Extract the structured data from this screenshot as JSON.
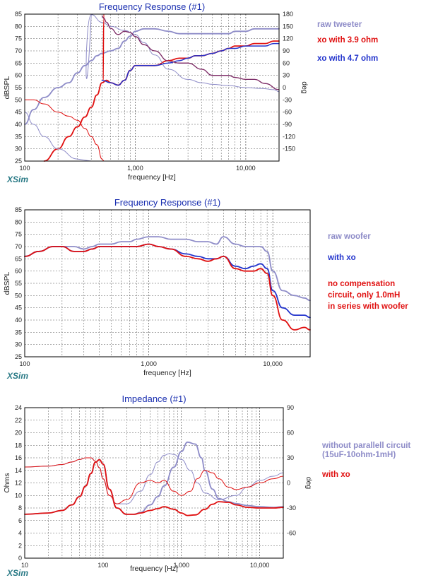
{
  "colors": {
    "raw": "#8e8cc8",
    "xo_red": "#e01010",
    "xo_blue": "#2233cc",
    "phase_dark": "#7a2d6a",
    "brand": "#2a7a86",
    "title": "#1a2fb0"
  },
  "chart_data": [
    {
      "type": "line",
      "title": "Frequency Response (#1)",
      "xlabel": "frequency [Hz]",
      "ylabel": "dBSPL",
      "ylabel_right": "deg",
      "brand": "XSim",
      "xscale": "log",
      "xlim": [
        100,
        20000
      ],
      "ylim": [
        25,
        85
      ],
      "ylim_right": [
        -180,
        180
      ],
      "yticks": [
        "85",
        "80",
        "75",
        "70",
        "65",
        "60",
        "55",
        "50",
        "45",
        "40",
        "35",
        "30",
        "25"
      ],
      "yticks_right": [
        "180",
        "150",
        "120",
        "90",
        "60",
        "30",
        "0",
        "-30",
        "-60",
        "-90",
        "-120",
        "-150"
      ],
      "xticks": [
        "100",
        "1,000",
        "10,000"
      ],
      "legend": [
        {
          "name": "raw tweeter",
          "color": "#8e8cc8"
        },
        {
          "name": "xo with 3.9 ohm",
          "color": "#e01010"
        },
        {
          "name": "xo with 4.7 ohm",
          "color": "#2233cc"
        }
      ],
      "series": [
        {
          "name": "raw tweeter",
          "axis": "left",
          "color": "#8e8cc8",
          "width": 1.8,
          "x": [
            100,
            120,
            150,
            200,
            250,
            300,
            350,
            400,
            450,
            500,
            600,
            700,
            800,
            900,
            1000,
            1200,
            1500,
            2000,
            2500,
            3000,
            4000,
            5000,
            6000,
            7000,
            8000,
            10000,
            12000,
            15000,
            18000,
            20000
          ],
          "y": [
            40,
            46,
            51,
            55,
            57,
            61,
            64,
            66,
            68,
            69,
            70,
            71,
            74,
            76,
            78,
            79,
            79,
            78,
            77,
            77,
            77,
            77,
            77,
            77,
            78,
            78,
            79,
            79,
            79,
            79
          ]
        },
        {
          "name": "xo with 3.9 ohm",
          "axis": "left",
          "color": "#e01010",
          "width": 1.8,
          "x": [
            150,
            200,
            250,
            300,
            350,
            400,
            450,
            500,
            550,
            600,
            700,
            800,
            900,
            1000,
            1200,
            1500,
            2000,
            2500,
            3000,
            3500,
            4000,
            5000,
            6000,
            7000,
            8000,
            10000,
            12000,
            15000,
            18000,
            20000
          ],
          "y": [
            25,
            30,
            35,
            39,
            43,
            47,
            52,
            57,
            58,
            57,
            56,
            58,
            62,
            64,
            64,
            64,
            66,
            67,
            67,
            68,
            68,
            69,
            70,
            71,
            72,
            72,
            73,
            73,
            74,
            74
          ]
        },
        {
          "name": "xo with 4.7 ohm",
          "axis": "left",
          "color": "#2233cc",
          "width": 1.5,
          "x": [
            500,
            600,
            700,
            800,
            900,
            1000,
            1200,
            1500,
            2000,
            2500,
            3000,
            3500,
            4000,
            5000,
            6000,
            7000,
            8000,
            10000,
            12000,
            15000,
            18000,
            20000
          ],
          "y": [
            58,
            57,
            56,
            58,
            62,
            64,
            64,
            64,
            65,
            66,
            67,
            68,
            68,
            69,
            70,
            71,
            71,
            72,
            72,
            72,
            73,
            73
          ]
        },
        {
          "name": "raw tweeter phase",
          "axis": "right",
          "color": "#8e8cc8",
          "width": 1.0,
          "x": [
            100,
            120,
            150,
            200,
            300,
            400,
            500,
            600,
            800,
            1000,
            1200,
            1500,
            2000,
            3000,
            4000,
            5000,
            7000,
            10000,
            14000,
            18000,
            20000
          ],
          "y": [
            -60,
            -90,
            -120,
            -150,
            -175,
            179,
            160,
            150,
            140,
            130,
            110,
            80,
            45,
            20,
            12,
            8,
            5,
            0,
            -2,
            -5,
            -10
          ]
        },
        {
          "name": "xo with 3.9 ohm phase",
          "axis": "right",
          "color": "#e01010",
          "width": 1.0,
          "x": [
            100,
            120,
            150,
            200,
            250,
            300,
            350,
            400,
            450,
            500,
            520,
            550,
            600,
            700,
            800,
            900,
            1000,
            1200,
            1500,
            2000,
            2500,
            3000,
            4000,
            5000,
            6000,
            7000,
            8000,
            10000,
            12000,
            15000,
            20000
          ],
          "y": [
            -30,
            -30,
            -40,
            -60,
            -70,
            -80,
            -100,
            -120,
            -140,
            -175,
            170,
            160,
            145,
            130,
            138,
            135,
            125,
            105,
            90,
            65,
            60,
            60,
            45,
            30,
            30,
            30,
            25,
            20,
            20,
            10,
            -5
          ]
        },
        {
          "name": "xo with 4.7 ohm phase",
          "axis": "right",
          "color": "#7a2d6a",
          "width": 1.3,
          "x": [
            500,
            520,
            550,
            600,
            700,
            800,
            900,
            1000,
            1200,
            1500,
            2000,
            2500,
            3000,
            4000,
            5000,
            6000,
            7000,
            8000,
            10000,
            12000,
            15000,
            20000
          ],
          "y": [
            175,
            170,
            160,
            145,
            130,
            138,
            135,
            125,
            105,
            90,
            65,
            60,
            60,
            45,
            30,
            30,
            30,
            25,
            20,
            20,
            10,
            -5
          ]
        }
      ]
    },
    {
      "type": "line",
      "title": "Frequency Response (#1)",
      "xlabel": "frequency [Hz]",
      "ylabel": "dBSPL",
      "brand": "XSim",
      "xscale": "log",
      "xlim": [
        100,
        20000
      ],
      "ylim": [
        25,
        85
      ],
      "yticks": [
        "85",
        "80",
        "75",
        "70",
        "65",
        "60",
        "55",
        "50",
        "45",
        "40",
        "35",
        "30",
        "25"
      ],
      "xticks": [
        "100",
        "1,000",
        "10,000"
      ],
      "legend": [
        {
          "name": "raw woofer",
          "color": "#8e8cc8"
        },
        {
          "name": "with xo",
          "color": "#2233cc"
        },
        {
          "name": "no compensation circuit, only 1.0mH in series with woofer",
          "color": "#e01010",
          "lines": [
            "no compensation",
            "circuit, only 1.0mH",
            "in series with woofer"
          ]
        }
      ],
      "series": [
        {
          "name": "raw woofer",
          "axis": "left",
          "color": "#8e8cc8",
          "width": 1.8,
          "x": [
            100,
            130,
            170,
            200,
            250,
            300,
            350,
            400,
            500,
            600,
            700,
            800,
            1000,
            1200,
            1500,
            2000,
            2500,
            3000,
            3500,
            4000,
            5000,
            6000,
            7000,
            8000,
            9000,
            10000,
            12000,
            15000,
            18000,
            20000
          ],
          "y": [
            66,
            68,
            70,
            70,
            70,
            69,
            70,
            71,
            71,
            72,
            72,
            73,
            74,
            74,
            73,
            73,
            72,
            72,
            71,
            74,
            71,
            70,
            70,
            70,
            68,
            60,
            52,
            50,
            49,
            48
          ]
        },
        {
          "name": "with xo",
          "axis": "left",
          "color": "#2233cc",
          "width": 1.8,
          "x": [
            100,
            130,
            170,
            200,
            250,
            300,
            350,
            400,
            500,
            600,
            700,
            800,
            1000,
            1200,
            1500,
            2000,
            2500,
            3000,
            3500,
            4000,
            5000,
            6000,
            7000,
            8000,
            9000,
            10000,
            12000,
            15000,
            18000,
            20000
          ],
          "y": [
            66,
            68,
            70,
            70,
            68,
            68,
            69,
            70,
            70,
            70,
            70,
            70,
            71,
            70,
            69,
            67,
            66,
            65,
            65,
            66,
            62,
            61,
            62,
            63,
            61,
            52,
            45,
            42,
            42,
            41
          ]
        },
        {
          "name": "no compensation",
          "axis": "left",
          "color": "#e01010",
          "width": 1.8,
          "x": [
            100,
            130,
            170,
            200,
            250,
            300,
            350,
            400,
            500,
            600,
            700,
            800,
            1000,
            1200,
            1500,
            2000,
            2500,
            3000,
            3500,
            4000,
            5000,
            6000,
            7000,
            8000,
            9000,
            10000,
            12000,
            15000,
            18000,
            20000
          ],
          "y": [
            66,
            68,
            70,
            70,
            68,
            68,
            69,
            70,
            70,
            70,
            70,
            70,
            71,
            70,
            69,
            66,
            65,
            64,
            65,
            66,
            61,
            60,
            60,
            61,
            59,
            50,
            40,
            36,
            37,
            36
          ]
        }
      ]
    },
    {
      "type": "line",
      "title": "Impedance (#1)",
      "xlabel": "frequency [Hz]",
      "ylabel": "Ohms",
      "ylabel_right": "deg",
      "brand": "XSim",
      "xscale": "log",
      "xlim": [
        10,
        20000
      ],
      "ylim": [
        0,
        24
      ],
      "ylim_right": [
        -90,
        90
      ],
      "yticks": [
        "24",
        "22",
        "20",
        "18",
        "16",
        "14",
        "12",
        "10",
        "8",
        "6",
        "4",
        "2",
        "0"
      ],
      "yticks_right": [
        "90",
        "60",
        "30",
        "0",
        "-30",
        "-60"
      ],
      "xticks": [
        "10",
        "100",
        "1,000",
        "10,000"
      ],
      "legend": [
        {
          "name": "without parallell circuit (15uF-10ohm-1mH)",
          "color": "#8e8cc8",
          "lines": [
            "without parallell circuit",
            "(15uF-10ohm-1mH)"
          ]
        },
        {
          "name": "with xo",
          "color": "#e01010"
        }
      ],
      "series": [
        {
          "name": "without parallell circuit",
          "axis": "left",
          "color": "#8e8cc8",
          "width": 1.8,
          "x": [
            10,
            20,
            30,
            40,
            50,
            60,
            70,
            80,
            90,
            100,
            120,
            150,
            200,
            250,
            300,
            400,
            500,
            600,
            800,
            1000,
            1200,
            1500,
            1800,
            2000,
            2500,
            3000,
            4000,
            5000,
            7000,
            10000,
            15000,
            20000
          ],
          "y": [
            7,
            7.2,
            7.6,
            8.5,
            9.8,
            11.5,
            13.5,
            15.3,
            15.7,
            15,
            11,
            8,
            7,
            7,
            7.3,
            8.5,
            9.8,
            11.5,
            14.5,
            17,
            18.5,
            18.2,
            16,
            14,
            11,
            9.5,
            9,
            8.7,
            8.4,
            8.2,
            8.1,
            8.2
          ]
        },
        {
          "name": "with xo",
          "axis": "left",
          "color": "#e01010",
          "width": 1.8,
          "x": [
            10,
            20,
            30,
            40,
            50,
            60,
            70,
            80,
            90,
            100,
            120,
            150,
            200,
            250,
            300,
            400,
            500,
            600,
            800,
            1000,
            1200,
            1500,
            2000,
            2500,
            3000,
            4000,
            5000,
            7000,
            10000,
            15000,
            20000
          ],
          "y": [
            7,
            7.2,
            7.6,
            8.5,
            9.8,
            11.5,
            13.5,
            15.3,
            15.7,
            15,
            11,
            8,
            7,
            7,
            7.2,
            7.6,
            7.9,
            8.2,
            7.8,
            7.2,
            6.8,
            6.9,
            7.8,
            8.6,
            9,
            8.9,
            8.5,
            8.1,
            8,
            8,
            8.1
          ]
        },
        {
          "name": "without parallell circuit phase",
          "axis": "right",
          "color": "#8e8cc8",
          "width": 1.0,
          "x": [
            10,
            20,
            30,
            40,
            50,
            60,
            70,
            80,
            90,
            100,
            120,
            150,
            200,
            300,
            400,
            500,
            600,
            700,
            800,
            1000,
            1300,
            1600,
            2000,
            3000,
            5000,
            7000,
            10000,
            15000,
            20000
          ],
          "y": [
            19,
            20,
            22,
            25,
            28,
            30,
            30,
            26,
            18,
            5,
            -15,
            -25,
            -25,
            -10,
            10,
            25,
            33,
            35,
            34,
            28,
            15,
            0,
            -12,
            -20,
            -15,
            -5,
            3,
            8,
            12
          ]
        },
        {
          "name": "with xo phase",
          "axis": "right",
          "color": "#e01010",
          "width": 1.0,
          "x": [
            10,
            20,
            30,
            40,
            50,
            60,
            70,
            80,
            90,
            100,
            120,
            150,
            200,
            300,
            400,
            500,
            600,
            800,
            1000,
            1300,
            1600,
            2000,
            2500,
            3000,
            4000,
            5000,
            7000,
            10000,
            15000,
            20000
          ],
          "y": [
            19,
            20,
            22,
            25,
            28,
            30,
            30,
            26,
            18,
            5,
            -15,
            -25,
            -20,
            0,
            3,
            0,
            3,
            -10,
            -15,
            -10,
            5,
            15,
            12,
            5,
            -5,
            -8,
            -5,
            0,
            5,
            8
          ]
        }
      ]
    }
  ]
}
